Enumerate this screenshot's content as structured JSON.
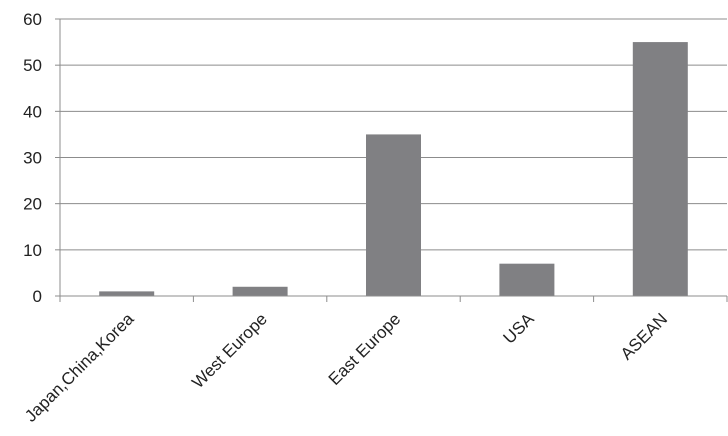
{
  "chart_data": {
    "type": "bar",
    "categories": [
      "Japan,China,Korea",
      "West Europe",
      "East Europe",
      "USA",
      "ASEAN"
    ],
    "values": [
      1,
      2,
      35,
      7,
      55
    ],
    "ylim": [
      0,
      60
    ],
    "yticks": [
      0,
      10,
      20,
      30,
      40,
      50,
      60
    ],
    "grid": true,
    "bar_color": "#808083",
    "grid_color": "#8c8c8c",
    "axis_color": "#8c8c8c"
  }
}
